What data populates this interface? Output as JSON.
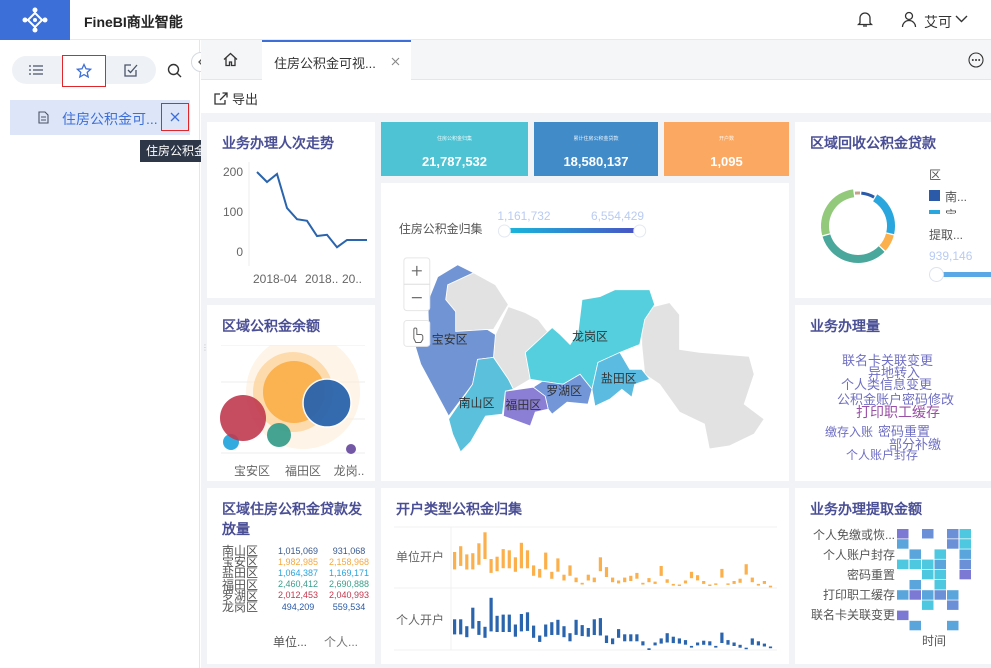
{
  "header": {
    "title": "FineBI商业智能",
    "user": "艾可",
    "icons": [
      "bell-icon",
      "user-icon",
      "chevron-down-icon"
    ]
  },
  "left_panel": {
    "tabs": [
      "list-icon",
      "star-icon",
      "edit-check-icon",
      "search-icon"
    ],
    "items": [
      {
        "label": "住房公积金可..."
      }
    ],
    "tooltip": "住房公积金可视化驾驶舱"
  },
  "tabs": {
    "active": "住房公积金可视..."
  },
  "toolbar": {
    "export": "导出"
  },
  "kpis": [
    {
      "label": "住房公积金归集",
      "value": "21,787,532",
      "color": "#4dc3d3"
    },
    {
      "label": "累计住房公积金贷款",
      "value": "18,580,137",
      "color": "#418bc9"
    },
    {
      "label": "开户数",
      "value": "1,095",
      "color": "#fba962"
    }
  ],
  "trend": {
    "title": "业务办理人次走势",
    "yticks": [
      "200",
      "100",
      "0"
    ],
    "xticks": [
      "2018-04",
      "2018..",
      "20.."
    ]
  },
  "balance": {
    "title": "区域公积金余额",
    "xticks": [
      "宝安区",
      "福田区",
      "龙岗.."
    ]
  },
  "loan_table": {
    "title": "区域住房公积金贷款发放量",
    "rows": [
      {
        "name": "南山区",
        "a": "1,015,069",
        "b": "931,068",
        "color": "#3a5a8c"
      },
      {
        "name": "宝安区",
        "a": "1,982,985",
        "b": "2,158,968",
        "color": "#f5a93f"
      },
      {
        "name": "盐田区",
        "a": "1,064,387",
        "b": "1,169,171",
        "color": "#29a6dd"
      },
      {
        "name": "福田区",
        "a": "2,460,412",
        "b": "2,690,888",
        "color": "#3a9e8c"
      },
      {
        "name": "罗湖区",
        "a": "2,012,453",
        "b": "2,040,993",
        "color": "#c0394f"
      },
      {
        "name": "龙岗区",
        "a": "494,209",
        "b": "559,534",
        "color": "#2a5aa8"
      }
    ],
    "cols": [
      "单位...",
      "个人..."
    ]
  },
  "map": {
    "legend_title": "住房公积金归集",
    "min": "1,161,732",
    "max": "6,554,429",
    "districts": [
      "宝安区",
      "龙岗区",
      "盐田区",
      "罗湖区",
      "南山区",
      "福田区"
    ],
    "controls": [
      "plus-icon",
      "minus-icon",
      "hand-pointer-icon"
    ]
  },
  "donut": {
    "title": "区域回收公积金贷款",
    "legend_title": "区",
    "legend": [
      "南...",
      "宝"
    ],
    "size_title": "提取...",
    "size_value": "939,146"
  },
  "wordcloud": {
    "title": "业务办理量",
    "words": [
      "联名卡关联变更",
      "异地转入",
      "个人类信息变更",
      "公积金账户密码修改",
      "打印职工缓存",
      "缴存入账",
      "密码重置",
      "部分补缴",
      "个人账户封存"
    ]
  },
  "bars": {
    "title": "开户类型公积金归集",
    "rows": [
      "单位开户",
      "个人开户"
    ]
  },
  "heatmap": {
    "title": "业务办理提取金额",
    "ylabels": [
      "个人免缴或恢...",
      "个人账户封存",
      "密码重置",
      "打印职工缓存",
      "联名卡关联变更"
    ],
    "xlabel": "时间"
  },
  "chart_data": [
    {
      "type": "line",
      "title": "业务办理人次走势",
      "ylim": [
        0,
        200
      ],
      "values": [
        200,
        175,
        195,
        110,
        82,
        78,
        40,
        43,
        12,
        30,
        30,
        30
      ]
    },
    {
      "type": "scatter",
      "title": "区域公积金余额",
      "points": [
        {
          "cat": "宝安区",
          "color": "#29a6dd",
          "size": 1
        },
        {
          "cat": "宝安区",
          "color": "#c0394f",
          "size": 5
        },
        {
          "cat": "福田区",
          "color": "#3a9e8c",
          "size": 2
        },
        {
          "cat": "福田区",
          "color": "#fbb04c",
          "size": 7
        },
        {
          "cat": "龙岗..",
          "color": "#2a64ad",
          "size": 6
        },
        {
          "cat": "龙岗..",
          "color": "#6b4fa0",
          "size": 0.6
        }
      ]
    },
    {
      "type": "pie",
      "title": "区域回收公积金贷款",
      "values": [
        7,
        20,
        8,
        33,
        27,
        3
      ],
      "colors": [
        "#2a5aa8",
        "#29a6dd",
        "#fbb04c",
        "#4aa79c",
        "#93c97a",
        "#c8a08a"
      ]
    },
    {
      "type": "bar",
      "title": "开户类型公积金归集",
      "series": [
        {
          "name": "单位开户",
          "color": "#fbb04c",
          "ranges": [
            [
              32,
              62
            ],
            [
              38,
              72
            ],
            [
              32,
              58
            ],
            [
              32,
              60
            ],
            [
              40,
              77
            ],
            [
              50,
              96
            ],
            [
              26,
              50
            ],
            [
              29,
              54
            ],
            [
              34,
              67
            ],
            [
              34,
              65
            ],
            [
              28,
              53
            ],
            [
              34,
              78
            ],
            [
              34,
              65
            ],
            [
              21,
              39
            ],
            [
              18,
              33
            ],
            [
              32,
              61
            ],
            [
              16,
              28
            ],
            [
              28,
              51
            ],
            [
              13,
              23
            ],
            [
              21,
              39
            ],
            [
              10,
              18
            ],
            [
              6,
              9
            ],
            [
              13,
              23
            ],
            [
              10,
              18
            ],
            [
              29,
              53
            ],
            [
              19,
              36
            ],
            [
              10,
              18
            ],
            [
              8,
              13
            ],
            [
              10,
              18
            ],
            [
              12,
              21
            ],
            [
              16,
              26
            ],
            [
              6,
              9
            ],
            [
              10,
              17
            ],
            [
              7,
              11
            ],
            [
              21,
              38
            ],
            [
              9,
              15
            ],
            [
              4,
              7
            ],
            [
              4,
              6
            ],
            [
              8,
              13
            ],
            [
              17,
              28
            ],
            [
              13,
              22
            ],
            [
              7,
              12
            ],
            [
              4,
              6
            ],
            [
              6,
              8
            ],
            [
              18,
              33
            ],
            [
              6,
              8
            ],
            [
              7,
              12
            ],
            [
              9,
              16
            ],
            [
              23,
              41
            ],
            [
              10,
              18
            ],
            [
              4,
              7
            ],
            [
              7,
              12
            ],
            [
              1,
              4
            ]
          ]
        },
        {
          "name": "个人开户",
          "color": "#2a64ad",
          "ranges": [
            [
              27,
              53
            ],
            [
              27,
              53
            ],
            [
              22,
              41
            ],
            [
              37,
              73
            ],
            [
              26,
              50
            ],
            [
              21,
              40
            ],
            [
              32,
              90
            ],
            [
              31,
              59
            ],
            [
              31,
              61
            ],
            [
              31,
              61
            ],
            [
              23,
              44
            ],
            [
              32,
              62
            ],
            [
              33,
              65
            ],
            [
              21,
              42
            ],
            [
              14,
              25
            ],
            [
              23,
              44
            ],
            [
              26,
              48
            ],
            [
              26,
              52
            ],
            [
              22,
              41
            ],
            [
              15,
              29
            ],
            [
              26,
              52
            ],
            [
              24,
              43
            ],
            [
              23,
              38
            ],
            [
              26,
              53
            ],
            [
              25,
              55
            ],
            [
              12,
              25
            ],
            [
              10,
              20
            ],
            [
              21,
              36
            ],
            [
              15,
              27
            ],
            [
              15,
              27
            ],
            [
              15,
              27
            ],
            [
              8,
              15
            ],
            [
              0,
              3
            ],
            [
              8,
              13
            ],
            [
              11,
              20
            ],
            [
              13,
              29
            ],
            [
              12,
              23
            ],
            [
              11,
              20
            ],
            [
              9,
              17
            ],
            [
              4,
              7
            ],
            [
              8,
              13
            ],
            [
              9,
              16
            ],
            [
              8,
              15
            ],
            [
              4,
              7
            ],
            [
              12,
              30
            ],
            [
              9,
              17
            ],
            [
              7,
              13
            ],
            [
              4,
              9
            ],
            [
              2,
              4
            ],
            [
              9,
              20
            ],
            [
              8,
              15
            ],
            [
              6,
              11
            ],
            [
              3,
              6
            ]
          ]
        }
      ]
    },
    {
      "type": "heatmap",
      "title": "业务办理提取金额",
      "colors": [
        "#7b79d3",
        "#5aa6dc",
        "#4ec8e0",
        "#6c90d8"
      ],
      "grid": [
        [
          1,
          0,
          4,
          0,
          4,
          3
        ],
        [
          2,
          0,
          0,
          0,
          4,
          3
        ],
        [
          0,
          2,
          0,
          3,
          0,
          2
        ],
        [
          3,
          3,
          3,
          2,
          0,
          4
        ],
        [
          0,
          0,
          3,
          3,
          0,
          1
        ],
        [
          0,
          2,
          0,
          3,
          0,
          0
        ],
        [
          2,
          1,
          2,
          4,
          2,
          0
        ],
        [
          0,
          0,
          3,
          0,
          4,
          0
        ],
        [
          1,
          0,
          0,
          0,
          0,
          0
        ],
        [
          0,
          2,
          0,
          0,
          2,
          0
        ]
      ]
    }
  ]
}
